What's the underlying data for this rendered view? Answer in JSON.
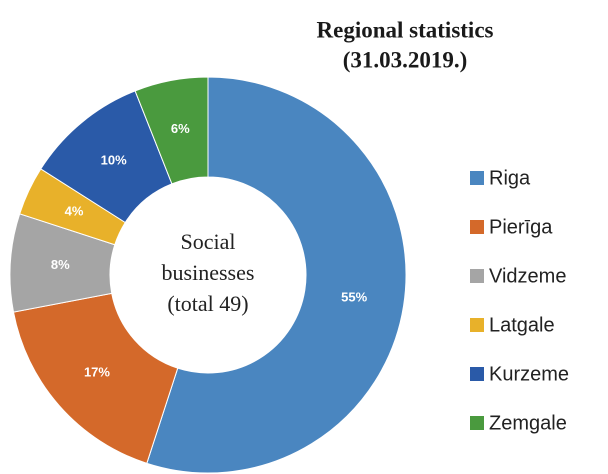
{
  "chart_data": {
    "type": "donut",
    "title": [
      "Regional statistics",
      "(31.03.2019.)"
    ],
    "center_label": [
      "Social",
      "businesses",
      "(total 49)"
    ],
    "categories": [
      "Riga",
      "Pierīga",
      "Vidzeme",
      "Latgale",
      "Kurzeme",
      "Zemgale"
    ],
    "values": [
      55,
      17,
      8,
      4,
      10,
      6
    ],
    "value_labels": [
      "55%",
      "17%",
      "8%",
      "4%",
      "10%",
      "6%"
    ],
    "colors": [
      "#4a86c0",
      "#d4692a",
      "#a5a5a5",
      "#e8b12a",
      "#2a5aa8",
      "#4a9a3e"
    ],
    "legend": "right"
  }
}
